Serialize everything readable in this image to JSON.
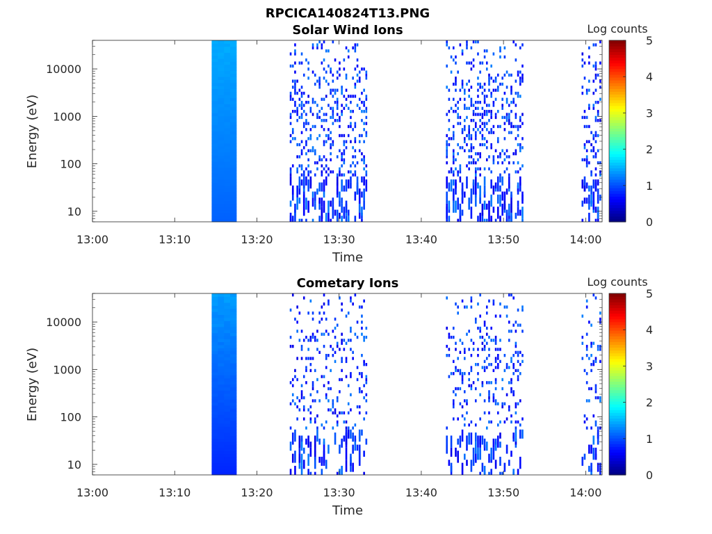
{
  "figure_title": "RPCICA140824T13.PNG",
  "chart_data": [
    {
      "type": "heatmap",
      "title": "Solar Wind Ions",
      "xlabel": "Time",
      "ylabel": "Energy (eV)",
      "y_scale": "log",
      "ylim": [
        6,
        40000
      ],
      "xlim": [
        "13:00",
        "14:02"
      ],
      "x_ticks": [
        "13:00",
        "13:10",
        "13:20",
        "13:30",
        "13:40",
        "13:50",
        "14:00"
      ],
      "y_ticks": [
        10,
        100,
        1000,
        10000
      ],
      "y_tick_labels": [
        "10",
        "100",
        "1000",
        "10000"
      ],
      "colorbar": {
        "label": "Log counts",
        "range": [
          0,
          5
        ],
        "ticks": [
          "0",
          "1",
          "2",
          "3",
          "4",
          "5"
        ],
        "colormap": "jet"
      },
      "segments": [
        {
          "start": "13:14:30",
          "end": "13:17:30",
          "kind": "dense",
          "level_range": [
            0.6,
            1.0
          ]
        },
        {
          "start": "13:24:00",
          "end": "13:33:30",
          "kind": "sparse",
          "level": 0.1,
          "density": 0.55
        },
        {
          "start": "13:43:00",
          "end": "13:52:30",
          "kind": "sparse",
          "level": 0.1,
          "density": 0.6
        },
        {
          "start": "13:59:30",
          "end": "14:02:00",
          "kind": "sparse",
          "level": 0.1,
          "density": 0.55
        }
      ]
    },
    {
      "type": "heatmap",
      "title": "Cometary Ions",
      "xlabel": "Time",
      "ylabel": "Energy (eV)",
      "y_scale": "log",
      "ylim": [
        6,
        40000
      ],
      "xlim": [
        "13:00",
        "14:02"
      ],
      "x_ticks": [
        "13:00",
        "13:10",
        "13:20",
        "13:30",
        "13:40",
        "13:50",
        "14:00"
      ],
      "y_ticks": [
        10,
        100,
        1000,
        10000
      ],
      "y_tick_labels": [
        "10",
        "100",
        "1000",
        "10000"
      ],
      "colorbar": {
        "label": "Log counts",
        "range": [
          0,
          5
        ],
        "ticks": [
          "0",
          "1",
          "2",
          "3",
          "4",
          "5"
        ],
        "colormap": "jet"
      },
      "segments": [
        {
          "start": "13:14:30",
          "end": "13:17:30",
          "kind": "dense",
          "level_range": [
            0.3,
            0.95
          ]
        },
        {
          "start": "13:24:00",
          "end": "13:33:30",
          "kind": "sparse",
          "level": 0.1,
          "density": 0.35
        },
        {
          "start": "13:43:00",
          "end": "13:52:30",
          "kind": "sparse",
          "level": 0.1,
          "density": 0.4
        },
        {
          "start": "13:59:30",
          "end": "14:02:00",
          "kind": "sparse",
          "level": 0.1,
          "density": 0.35
        }
      ]
    }
  ]
}
